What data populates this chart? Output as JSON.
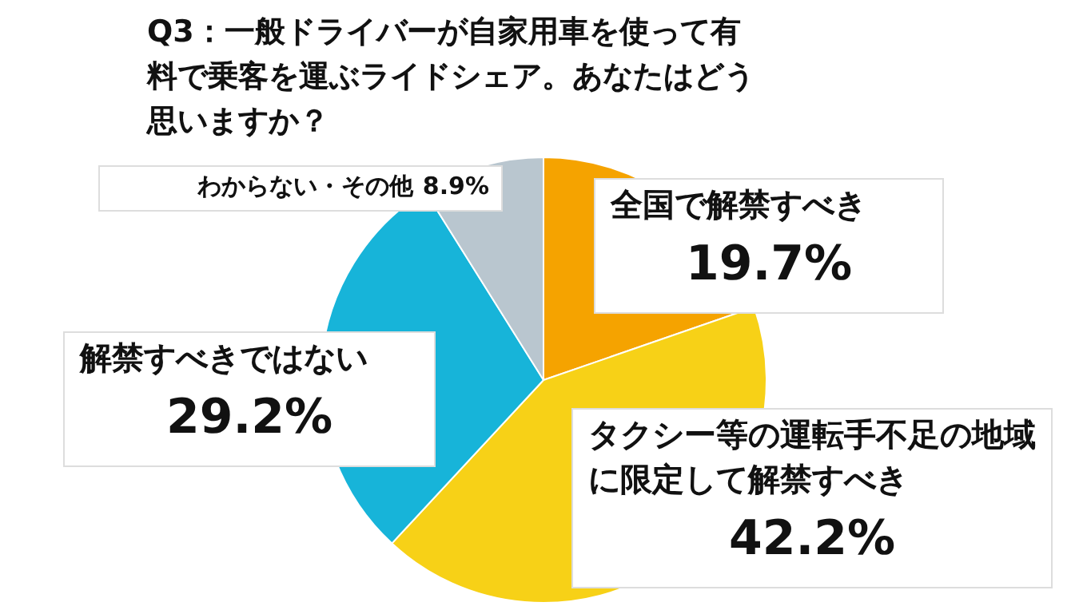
{
  "chart_data": {
    "type": "pie",
    "title": "Q3：一般ドライバーが自家用車を使って有料で乗客を運ぶライドシェア。あなたはどう思いますか？",
    "categories": [
      "全国で解禁すべき",
      "タクシー等の運転手不足の地域に限定して解禁すべき",
      "解禁すべきではない",
      "わからない・その他"
    ],
    "values": [
      19.7,
      42.2,
      29.2,
      8.9
    ],
    "colors": [
      "#f5a300",
      "#f7d117",
      "#17b4d9",
      "#b9c6cf"
    ],
    "value_labels": [
      "19.7%",
      "42.2%",
      "29.2%",
      "8.9%"
    ],
    "legend": false
  }
}
